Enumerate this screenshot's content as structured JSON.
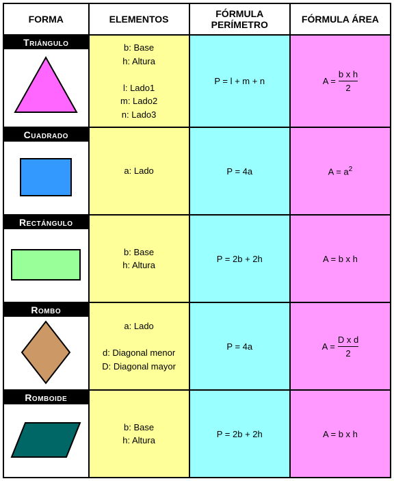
{
  "columns": {
    "widths_pct": [
      22,
      26,
      26,
      26
    ],
    "headers": [
      "FORMA",
      "ELEMENTOS",
      "FÓRMULA PERÍMETRO",
      "FÓRMULA ÁREA"
    ],
    "header_bg": "#ffffff",
    "header_border": "#000000"
  },
  "cell_colors": {
    "elementos_bg": "#ffff99",
    "perimetro_bg": "#99ffff",
    "area_bg": "#ff99ff",
    "shape_label_bg": "#000000",
    "shape_label_fg": "#ffffff",
    "border": "#000000"
  },
  "shapes": [
    {
      "name": "Triángulo",
      "svg": {
        "type": "triangle",
        "fill": "#ff66ff",
        "stroke": "#000000",
        "stroke_width": 2
      },
      "elements": [
        "b: Base",
        "h: Altura",
        "",
        "l: Lado1",
        "m: Lado2",
        "n: Lado3"
      ],
      "perimeter": "P = l + m + n",
      "area": {
        "type": "fraction",
        "prefix": "A = ",
        "num": "b x h",
        "den": "2"
      }
    },
    {
      "name": "Cuadrado",
      "svg": {
        "type": "square",
        "fill": "#3399ff",
        "stroke": "#000000",
        "stroke_width": 2
      },
      "elements": [
        "a: Lado"
      ],
      "perimeter": "P = 4a",
      "area": {
        "type": "power",
        "text": "A = a",
        "sup": "2"
      }
    },
    {
      "name": "Rectángulo",
      "svg": {
        "type": "rectangle",
        "fill": "#99ff99",
        "stroke": "#000000",
        "stroke_width": 2
      },
      "elements": [
        "b: Base",
        "h: Altura"
      ],
      "perimeter": "P = 2b + 2h",
      "area": {
        "type": "plain",
        "text": "A = b x h"
      }
    },
    {
      "name": "Rombo",
      "svg": {
        "type": "rhombus",
        "fill": "#cc9966",
        "stroke": "#000000",
        "stroke_width": 2
      },
      "elements": [
        "a: Lado",
        "",
        "d: Diagonal menor",
        "D: Diagonal mayor"
      ],
      "perimeter": "P = 4a",
      "area": {
        "type": "fraction",
        "prefix": "A = ",
        "num": "D x d",
        "den": "2"
      }
    },
    {
      "name": "Romboide",
      "svg": {
        "type": "rhomboid",
        "fill": "#006666",
        "stroke": "#000000",
        "stroke_width": 2
      },
      "elements": [
        "b: Base",
        "h: Altura"
      ],
      "perimeter": "P = 2b + 2h",
      "area": {
        "type": "plain",
        "text": "A = b x h"
      }
    }
  ]
}
